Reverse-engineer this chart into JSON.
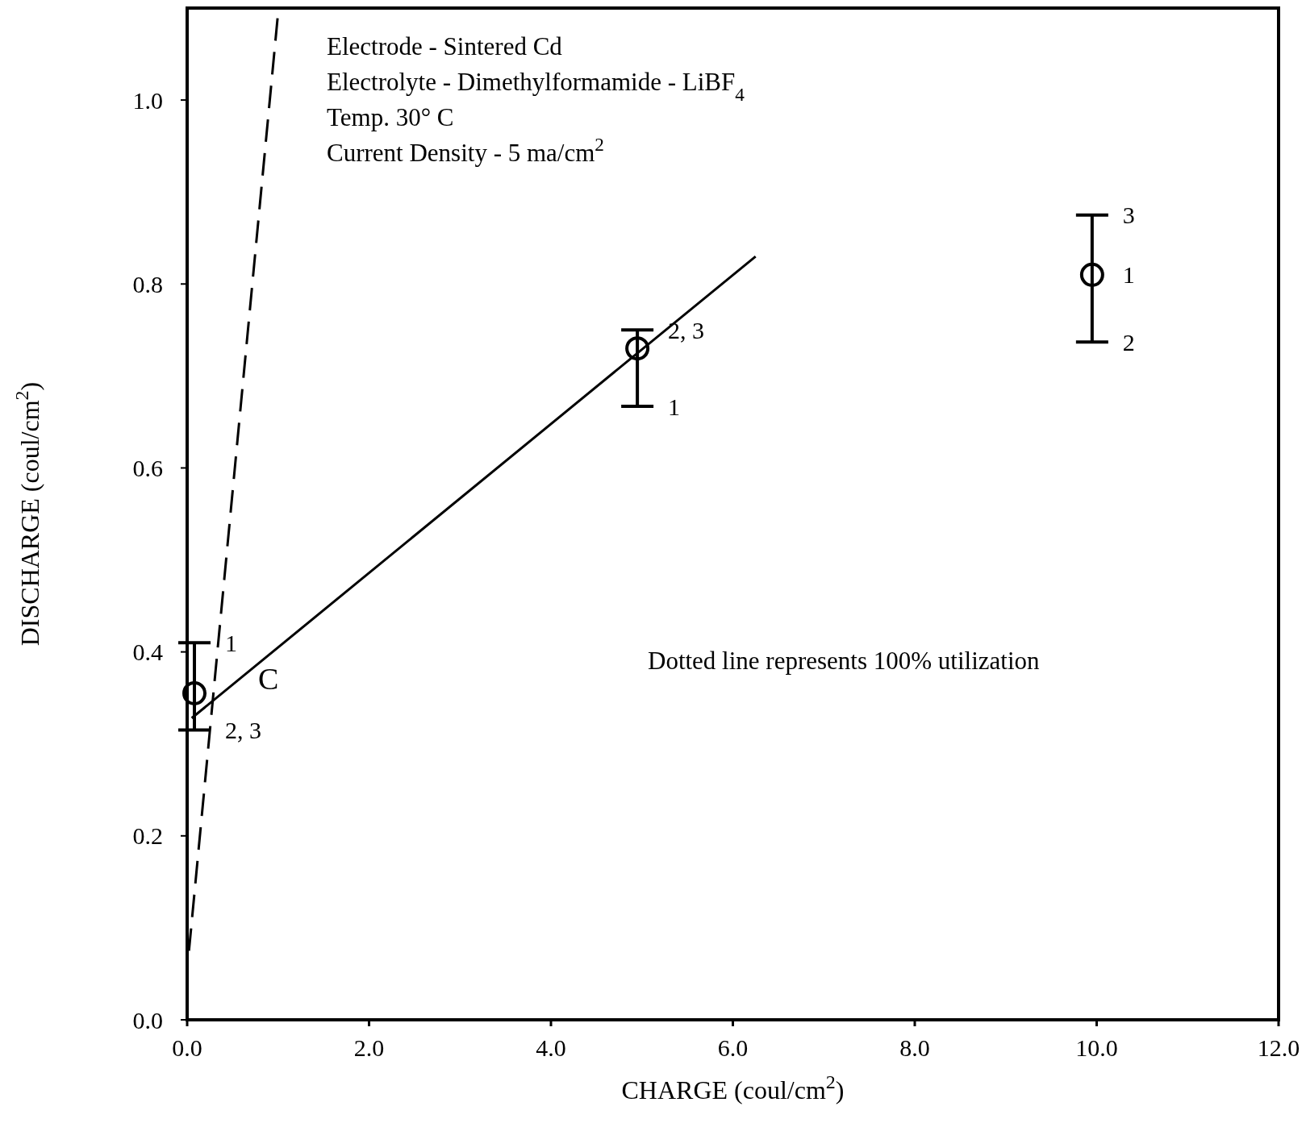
{
  "chart_data": {
    "type": "scatter",
    "xlabel": "CHARGE (coul/cm$^{2}$)",
    "ylabel": "DISCHARGE (coul/cm$^{2}$)",
    "xlim": [
      0,
      12
    ],
    "ylim": [
      0,
      1.1
    ],
    "xticks": [
      {
        "value": 0,
        "label": "0.0"
      },
      {
        "value": 2,
        "label": "2.0"
      },
      {
        "value": 4,
        "label": "4.0"
      },
      {
        "value": 6,
        "label": "6.0"
      },
      {
        "value": 8,
        "label": "8.0"
      },
      {
        "value": 10,
        "label": "10.0"
      },
      {
        "value": 12,
        "label": "12.0"
      }
    ],
    "yticks": [
      {
        "value": 0,
        "label": "0.0"
      },
      {
        "value": 0.2,
        "label": "0.2"
      },
      {
        "value": 0.4,
        "label": "0.4"
      },
      {
        "value": 0.6,
        "label": "0.6"
      },
      {
        "value": 0.8,
        "label": "0.8"
      },
      {
        "value": 1,
        "label": "1.0"
      }
    ],
    "grid": false,
    "series": [
      {
        "color": "#000000",
        "marker": "circle",
        "x": [
          0.08,
          4.95,
          9.95
        ],
        "values": [
          0.355,
          0.73,
          0.81
        ],
        "errors": [
          [
            0.315,
            0.41
          ],
          [
            0.667,
            0.75
          ],
          [
            0.737,
            0.875
          ]
        ]
      },
      {
        "type": "line",
        "color": "#000000",
        "marker": "none",
        "line_style": "solid",
        "x": [
          0.05,
          6.25
        ],
        "values": [
          0.328,
          0.83
        ]
      },
      {
        "type": "line",
        "color": "#000000",
        "marker": "none",
        "line_style": "dashed",
        "x": [
          0.02,
          1.0
        ],
        "values": [
          0.075,
          1.095
        ]
      }
    ],
    "annotations": [
      "Electrode - Sintered Cd",
      "Electrolyte - Dimethylformamide - LiBF$_{4}$",
      "Temp.  30° C",
      "Current Density  - 5 ma/cm$^{2}$",
      "Dotted line represents 100% utilization",
      "C",
      {
        "text": "1",
        "x": 0.08,
        "y": 0.41
      },
      {
        "text": "2, 3",
        "x": 0.08,
        "y": 0.315
      },
      {
        "text": "2, 3",
        "x": 4.95,
        "y": 0.75
      },
      {
        "text": "1",
        "x": 4.95,
        "y": 0.667
      },
      {
        "text": "3",
        "x": 9.95,
        "y": 0.875
      },
      {
        "text": "1",
        "x": 9.95,
        "y": 0.81
      },
      {
        "text": "2",
        "x": 9.95,
        "y": 0.737
      }
    ]
  }
}
